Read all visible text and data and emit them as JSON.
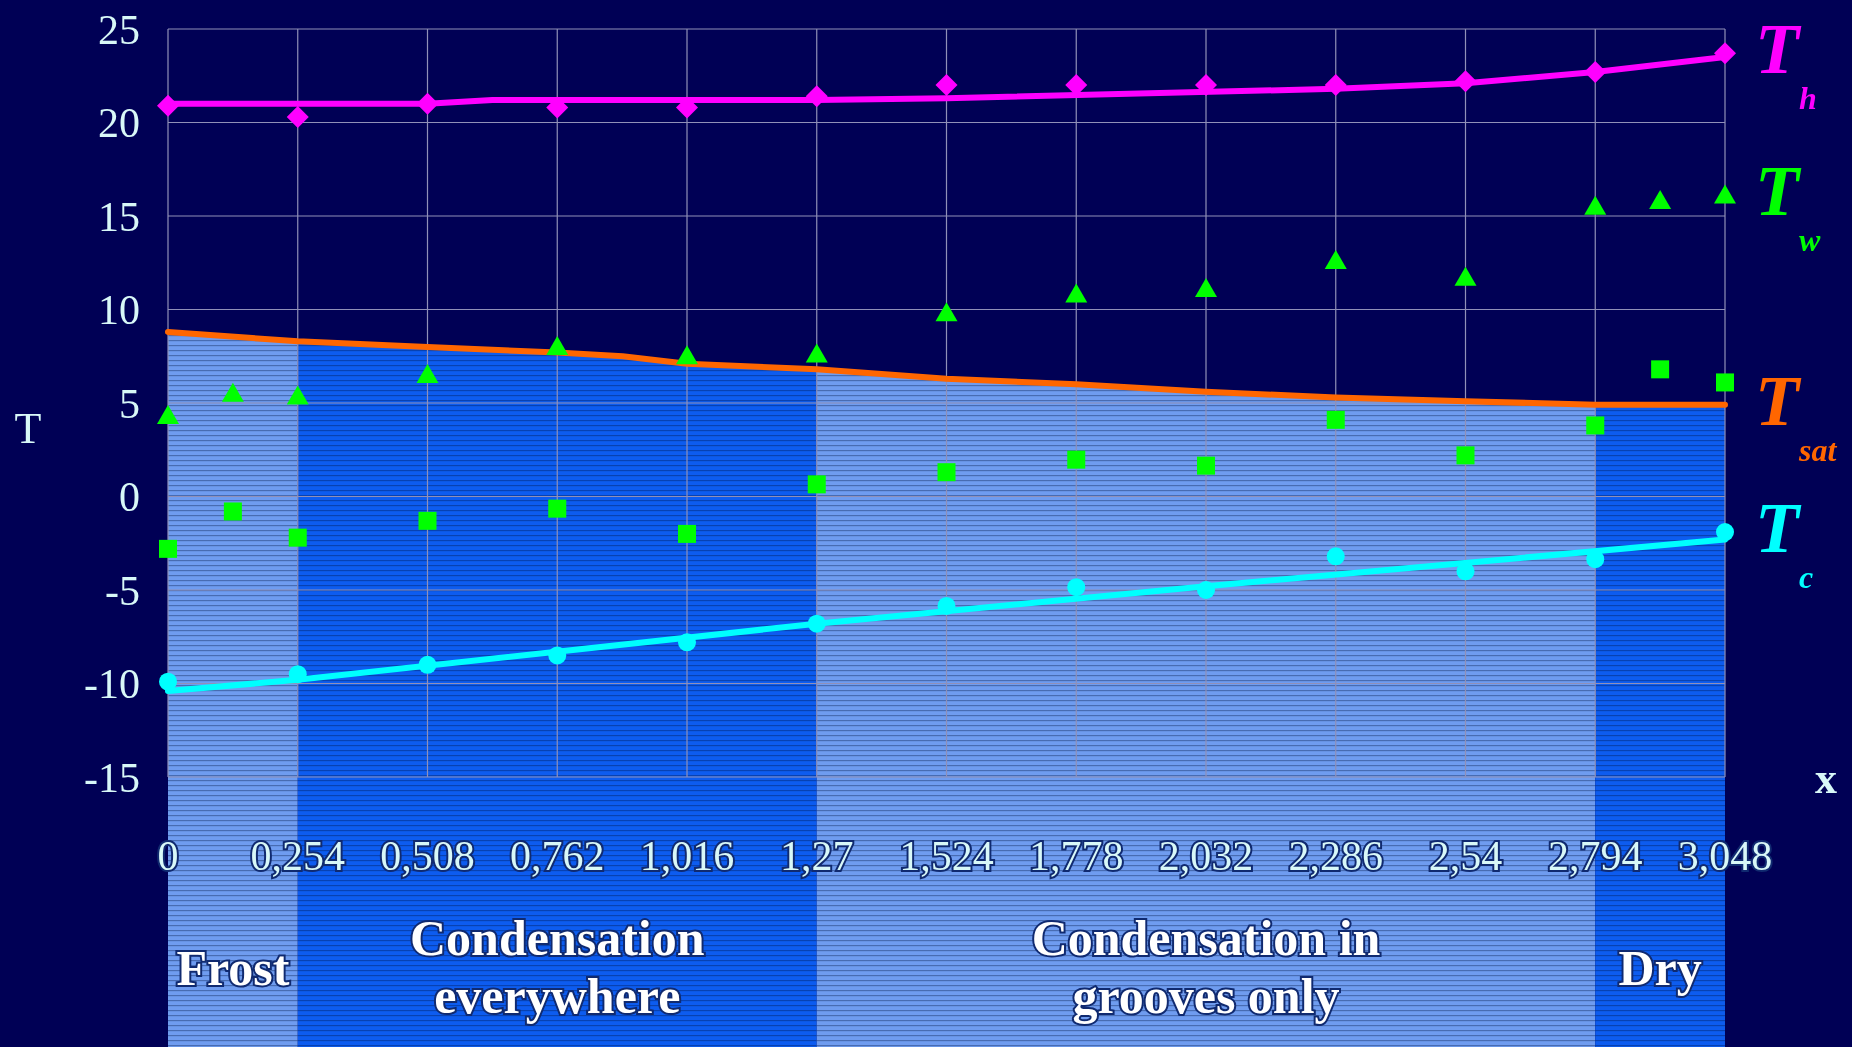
{
  "chart_data": {
    "type": "scatter",
    "xlabel": "x",
    "ylabel": "T",
    "xlim": [
      0,
      3.048
    ],
    "ylim": [
      -15,
      25
    ],
    "xticks": [
      0,
      {
        "value": 0.254,
        "label": "0,254"
      },
      {
        "value": 0.508,
        "label": "0,508"
      },
      {
        "value": 0.762,
        "label": "0,762"
      },
      {
        "value": 1.016,
        "label": "1,016"
      },
      {
        "value": 1.27,
        "label": "1,27"
      },
      {
        "value": 1.524,
        "label": "1,524"
      },
      {
        "value": 1.778,
        "label": "1,778"
      },
      {
        "value": 2.032,
        "label": "2,032"
      },
      {
        "value": 2.286,
        "label": "2,286"
      },
      {
        "value": 2.54,
        "label": "2,54"
      },
      {
        "value": 2.794,
        "label": "2,794"
      },
      {
        "value": 3.048,
        "label": "3,048"
      }
    ],
    "yticks": [
      -15,
      -10,
      -5,
      0,
      5,
      10,
      15,
      20,
      25
    ],
    "grid": true,
    "bands": [
      {
        "axis": "x",
        "from": 0,
        "to": 0.254,
        "label": "Frost",
        "color": "#6f9cf0"
      },
      {
        "axis": "x",
        "from": 0.254,
        "to": 1.27,
        "label": "Condensation everywhere",
        "color": "#0d5cf0"
      },
      {
        "axis": "x",
        "from": 1.27,
        "to": 2.794,
        "label": "Condensation in grooves only",
        "color": "#6f9cf0"
      },
      {
        "axis": "x",
        "from": 2.794,
        "to": 3.048,
        "label": "Dry",
        "color": "#0d5cf0"
      }
    ],
    "series": [
      {
        "type": "line",
        "name": "T$_{sat}$",
        "color": "#ff6600",
        "marker": "none",
        "x": [
          0,
          0.254,
          0.508,
          0.762,
          0.89,
          1.016,
          1.27,
          1.524,
          1.778,
          2.032,
          2.286,
          2.54,
          2.794,
          3.048
        ],
        "values": [
          8.8,
          8.3,
          8.0,
          7.7,
          7.5,
          7.1,
          6.8,
          6.3,
          6.0,
          5.6,
          5.3,
          5.1,
          4.9,
          4.9
        ]
      },
      {
        "type": "line",
        "color": "#ff00ff",
        "marker": "none",
        "x": [
          0,
          0.508,
          0.635,
          1.27,
          1.524,
          2.286,
          2.54,
          2.794,
          3.048
        ],
        "values": [
          21.0,
          21.0,
          21.2,
          21.2,
          21.3,
          21.8,
          22.1,
          22.7,
          23.5
        ]
      },
      {
        "name": "T$_{h}$",
        "color": "#ff00ff",
        "marker": "diamond",
        "x": [
          0,
          0.254,
          0.508,
          0.762,
          1.016,
          1.27,
          1.524,
          1.778,
          2.032,
          2.286,
          2.54,
          2.794,
          3.048
        ],
        "values": [
          20.9,
          20.3,
          21.0,
          20.8,
          20.8,
          21.4,
          22.0,
          22.0,
          22.0,
          22.0,
          22.2,
          22.7,
          23.7
        ]
      },
      {
        "name": "T$_{w}$",
        "color": "#00ff00",
        "marker": "triangle",
        "x": [
          0,
          0.127,
          0.254,
          0.508,
          0.762,
          1.016,
          1.27,
          1.524,
          1.778,
          2.032,
          2.286,
          2.54,
          2.794,
          2.921,
          3.048
        ],
        "values": [
          4.3,
          5.5,
          5.35,
          6.5,
          8.0,
          7.5,
          7.6,
          9.8,
          10.8,
          11.1,
          12.6,
          11.7,
          15.5,
          15.8,
          16.1
        ]
      },
      {
        "color": "#00ff00",
        "marker": "square",
        "x": [
          0,
          0.127,
          0.254,
          0.508,
          0.762,
          1.016,
          1.27,
          1.524,
          1.778,
          2.032,
          2.286,
          2.54,
          2.794,
          2.921,
          3.048
        ],
        "values": [
          -2.8,
          -0.8,
          -2.2,
          -1.3,
          -0.65,
          -2.0,
          0.65,
          1.3,
          1.97,
          1.65,
          4.1,
          2.2,
          3.8,
          6.8,
          6.1
        ]
      },
      {
        "type": "line",
        "color": "#00ffff",
        "marker": "none",
        "x": [
          0,
          0.254,
          1.27,
          2.032,
          3.048
        ],
        "values": [
          -10.4,
          -9.8,
          -6.8,
          -4.8,
          -2.3
        ]
      },
      {
        "name": "T$_{c}$",
        "color": "#00ffff",
        "marker": "circle",
        "x": [
          0,
          0.254,
          0.508,
          0.762,
          1.016,
          1.27,
          1.524,
          1.778,
          2.032,
          2.286,
          2.54,
          2.794,
          3.048
        ],
        "values": [
          -9.9,
          -9.5,
          -9.0,
          -8.5,
          -7.8,
          -6.8,
          -5.85,
          -4.85,
          -5.0,
          -3.2,
          -4.0,
          -3.35,
          -1.9
        ]
      }
    ]
  }
}
